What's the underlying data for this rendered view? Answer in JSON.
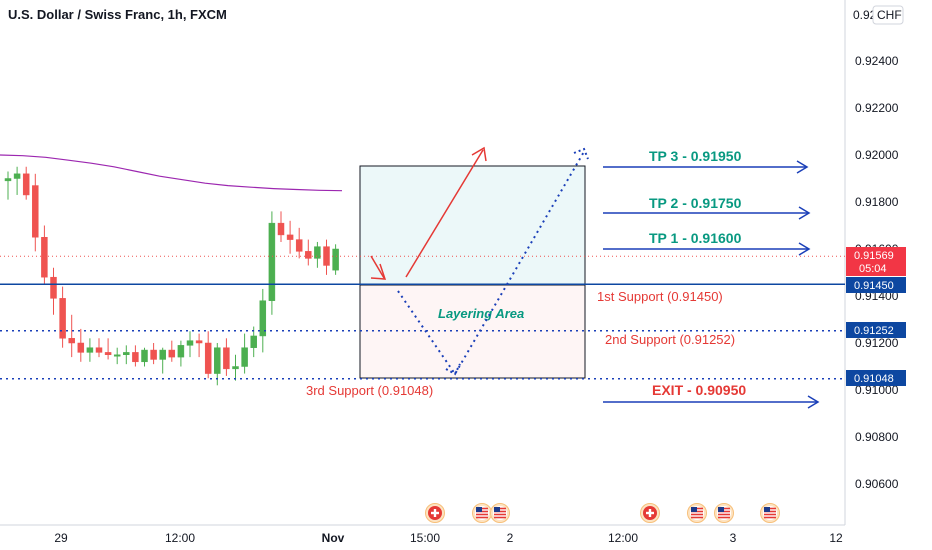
{
  "header": {
    "title": "U.S. Dollar / Swiss Franc, 1h, FXCM"
  },
  "currency_badge": "CHF",
  "price_axis": {
    "ticks": [
      "0.92400",
      "0.92200",
      "0.92000",
      "0.91800",
      "0.91600",
      "0.91400",
      "0.91200",
      "0.91000",
      "0.90800",
      "0.90600"
    ],
    "top_partial": "0.92"
  },
  "time_axis": {
    "ticks": [
      "29",
      "12:00",
      "Nov",
      "15:00",
      "2",
      "12:00",
      "3",
      "12"
    ]
  },
  "badges": {
    "current_price": "0.91569",
    "countdown": "05:04",
    "support1": "0.91450",
    "support2": "0.91252",
    "support3": "0.91048"
  },
  "labels": {
    "support1": "1st Support (0.91450)",
    "support2": "2nd Support (0.91252)",
    "support3": "3rd Support  (0.91048)",
    "tp3": "TP 3 - 0.91950",
    "tp2": "TP 2 - 0.91750",
    "tp1": "TP 1 - 0.91600",
    "exit": "EXIT - 0.90950",
    "layering": "Layering Area"
  },
  "colors": {
    "bull": "#4caf50",
    "bear": "#ef5350",
    "accent_blue": "#0d47a1",
    "dotted_blue": "#1a3fb8",
    "ma_purple": "#9c27b0",
    "teal": "#089981",
    "red": "#e53935",
    "current_price_badge": "#f23645"
  },
  "event_icons": [
    "swiss-flag-icon",
    "us-flag-icon",
    "us-flag-icon",
    "swiss-flag-icon",
    "us-flag-icon",
    "us-flag-icon",
    "us-flag-icon"
  ],
  "chart_data": {
    "type": "candlestick",
    "title": "U.S. Dollar / Swiss Franc, 1h, FXCM",
    "ylim": [
      0.9046,
      0.9265
    ],
    "candles": [
      {
        "o": 0.9189,
        "h": 0.9193,
        "l": 0.9181,
        "c": 0.919
      },
      {
        "o": 0.919,
        "h": 0.9195,
        "l": 0.9183,
        "c": 0.9192
      },
      {
        "o": 0.9192,
        "h": 0.9195,
        "l": 0.9181,
        "c": 0.9183
      },
      {
        "o": 0.9187,
        "h": 0.9192,
        "l": 0.9159,
        "c": 0.9165
      },
      {
        "o": 0.9165,
        "h": 0.917,
        "l": 0.9145,
        "c": 0.9148
      },
      {
        "o": 0.9148,
        "h": 0.9152,
        "l": 0.9132,
        "c": 0.9139
      },
      {
        "o": 0.9139,
        "h": 0.9144,
        "l": 0.9118,
        "c": 0.9122
      },
      {
        "o": 0.9122,
        "h": 0.9132,
        "l": 0.9114,
        "c": 0.912
      },
      {
        "o": 0.912,
        "h": 0.9126,
        "l": 0.9112,
        "c": 0.9116
      },
      {
        "o": 0.9116,
        "h": 0.9122,
        "l": 0.9112,
        "c": 0.9118
      },
      {
        "o": 0.9118,
        "h": 0.9122,
        "l": 0.9114,
        "c": 0.9116
      },
      {
        "o": 0.9116,
        "h": 0.9122,
        "l": 0.9113,
        "c": 0.9115
      },
      {
        "o": 0.9115,
        "h": 0.9118,
        "l": 0.9111,
        "c": 0.9115
      },
      {
        "o": 0.9115,
        "h": 0.9119,
        "l": 0.9111,
        "c": 0.9116
      },
      {
        "o": 0.9116,
        "h": 0.9119,
        "l": 0.911,
        "c": 0.9112
      },
      {
        "o": 0.9112,
        "h": 0.9118,
        "l": 0.911,
        "c": 0.9117
      },
      {
        "o": 0.9117,
        "h": 0.912,
        "l": 0.9111,
        "c": 0.9113
      },
      {
        "o": 0.9113,
        "h": 0.9118,
        "l": 0.9107,
        "c": 0.9117
      },
      {
        "o": 0.9117,
        "h": 0.9121,
        "l": 0.9112,
        "c": 0.9114
      },
      {
        "o": 0.9114,
        "h": 0.9121,
        "l": 0.911,
        "c": 0.9119
      },
      {
        "o": 0.9119,
        "h": 0.9125,
        "l": 0.9114,
        "c": 0.9121
      },
      {
        "o": 0.9121,
        "h": 0.9124,
        "l": 0.9114,
        "c": 0.912
      },
      {
        "o": 0.912,
        "h": 0.9125,
        "l": 0.9105,
        "c": 0.9107
      },
      {
        "o": 0.9107,
        "h": 0.912,
        "l": 0.9102,
        "c": 0.9118
      },
      {
        "o": 0.9118,
        "h": 0.9122,
        "l": 0.9106,
        "c": 0.9109
      },
      {
        "o": 0.9109,
        "h": 0.9115,
        "l": 0.9104,
        "c": 0.911
      },
      {
        "o": 0.911,
        "h": 0.9124,
        "l": 0.9107,
        "c": 0.9118
      },
      {
        "o": 0.9118,
        "h": 0.9127,
        "l": 0.9114,
        "c": 0.9123
      },
      {
        "o": 0.9123,
        "h": 0.9143,
        "l": 0.9116,
        "c": 0.9138
      },
      {
        "o": 0.9138,
        "h": 0.9176,
        "l": 0.9132,
        "c": 0.9171
      },
      {
        "o": 0.9171,
        "h": 0.9176,
        "l": 0.9163,
        "c": 0.9166
      },
      {
        "o": 0.9166,
        "h": 0.9172,
        "l": 0.9158,
        "c": 0.9164
      },
      {
        "o": 0.9164,
        "h": 0.9169,
        "l": 0.9156,
        "c": 0.9159
      },
      {
        "o": 0.9159,
        "h": 0.9164,
        "l": 0.9153,
        "c": 0.9156
      },
      {
        "o": 0.9156,
        "h": 0.9163,
        "l": 0.9152,
        "c": 0.9161
      },
      {
        "o": 0.9161,
        "h": 0.9164,
        "l": 0.9149,
        "c": 0.9153
      },
      {
        "o": 0.9151,
        "h": 0.9162,
        "l": 0.9149,
        "c": 0.916
      }
    ],
    "moving_average": [
      0.92,
      0.91997,
      0.9199,
      0.91978,
      0.91965,
      0.9195,
      0.9193,
      0.9191,
      0.91895,
      0.9188,
      0.9187,
      0.91863,
      0.91857,
      0.91853,
      0.9185,
      0.91848
    ],
    "levels": {
      "support1": 0.9145,
      "support2": 0.91252,
      "support3": 0.91048,
      "tp1": 0.916,
      "tp2": 0.9175,
      "tp3": 0.9195,
      "exit": 0.9095,
      "current": 0.91569
    }
  }
}
